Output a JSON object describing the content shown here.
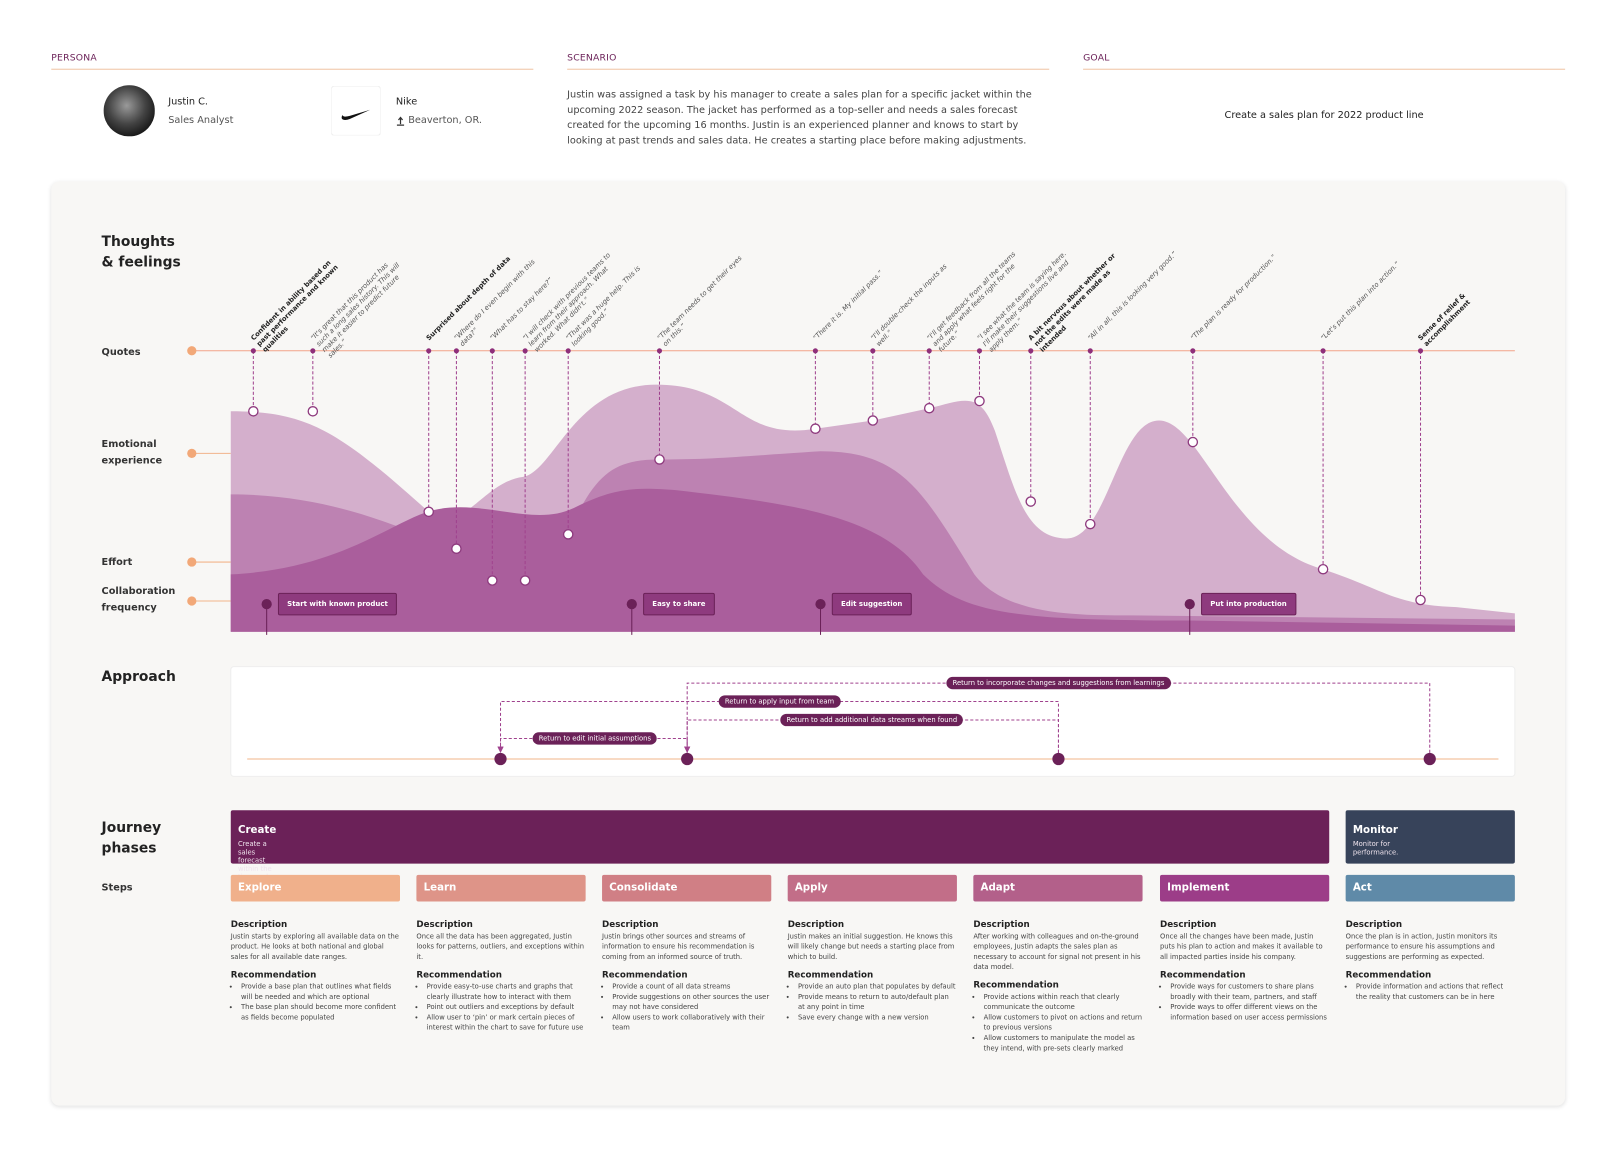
{
  "header": {
    "persona": {
      "label": "PERSONA",
      "name": "Justin C.",
      "role": "Sales Analyst",
      "company": "Nike",
      "location": "Beaverton, OR."
    },
    "scenario": {
      "label": "SCENARIO",
      "text": "Justin was assigned a task by his manager to create a sales plan for a specific jacket within the upcoming 2022 season. The jacket has performed as a top-seller and needs a sales forecast created for the upcoming 16 months. Justin is an experienced planner and knows to start by looking at past trends and sales data. He creates a starting place before making adjustments."
    },
    "goal": {
      "label": "GOAL",
      "text": "Create a sales plan for 2022 product line"
    }
  },
  "journey": {
    "thoughts_title": "Thoughts & feelings",
    "rows": [
      "Quotes",
      "Emotional experience",
      "Effort",
      "Collaboration frequency"
    ],
    "quotes": [
      {
        "text": "Confident in ability based on past performance and known qualities",
        "strong": true
      },
      {
        "text": "“It's great that this product has such a long sales history. This will make it easier to predict future sales.”",
        "strong": false
      },
      {
        "text": "Surprised about depth of data",
        "strong": true
      },
      {
        "text": "“Where do I even begin with this data?”",
        "strong": false
      },
      {
        "text": "“What has to stay here?”",
        "strong": false
      },
      {
        "text": "“I will check with previous teams to learn from their approach. What worked. What didn't.”",
        "strong": false
      },
      {
        "text": "“That was a huge help. This is looking good.”",
        "strong": false
      },
      {
        "text": "“The team needs to get their eyes on this.”",
        "strong": false
      },
      {
        "text": "“There it is. My initial pass.”",
        "strong": false
      },
      {
        "text": "“I'll double-check the inputs as well.”",
        "strong": false
      },
      {
        "text": "“I'll get feedback from all the teams and apply what feels right for the future.”",
        "strong": false
      },
      {
        "text": "“I see what the team is saying here. I'll make their suggestions live and apply them.”",
        "strong": false
      },
      {
        "text": "A bit nervous about whether or not the edits were made as intended",
        "strong": true
      },
      {
        "text": "“All in all, this is looking very good.”",
        "strong": false
      },
      {
        "text": "“The plan is ready for production.”",
        "strong": false
      },
      {
        "text": "“Let's put this plan into action.”",
        "strong": false
      },
      {
        "text": "Sense of relief & accomplishment",
        "strong": true
      }
    ],
    "collaboration": [
      "Start with known product",
      "Easy to share",
      "Edit suggestion",
      "Put into production"
    ],
    "approach": {
      "title": "Approach",
      "loops": [
        "Return to incorporate changes and suggestions from learnings",
        "Return to apply input from team",
        "Return to add additional data streams when found",
        "Return to edit initial assumptions"
      ]
    },
    "phases_title": "Journey phases",
    "phases": [
      {
        "name": "Create",
        "summary": "Create a sales forecast within the time and budget constraints."
      },
      {
        "name": "Monitor",
        "summary": "Monitor for performance."
      }
    ],
    "steps_title": "Steps",
    "description_heading": "Description",
    "recommendation_heading": "Recommendation",
    "steps": [
      {
        "name": "Explore",
        "description": "Justin starts by exploring all available data on the product. He looks at both national and global sales for all available date ranges.",
        "recommendations": [
          "Provide a base plan that outlines what fields will be needed and which are optional",
          "The base plan should become more confident as fields become populated"
        ]
      },
      {
        "name": "Learn",
        "description": "Once all the data has been aggregated, Justin looks for patterns, outliers, and exceptions within it.",
        "recommendations": [
          "Provide easy-to-use charts and graphs that clearly illustrate how to interact with them",
          "Point out outliers and exceptions by default",
          "Allow user to ‘pin’ or mark certain pieces of interest within the chart to save for future use"
        ]
      },
      {
        "name": "Consolidate",
        "description": "Justin brings other sources and streams of information to ensure his recommendation is coming from an informed source of truth.",
        "recommendations": [
          "Provide a count of all data streams",
          "Provide suggestions on other sources the user may not have considered",
          "Allow users to work collaboratively with their team"
        ]
      },
      {
        "name": "Apply",
        "description": "Justin makes an initial suggestion. He knows this will likely change but needs a starting place from which to build.",
        "recommendations": [
          "Provide an auto plan that populates by default",
          "Provide means to return to auto/default plan at any point in time",
          "Save every change with a new version"
        ]
      },
      {
        "name": "Adapt",
        "description": "After working with colleagues and on-the-ground employees, Justin adapts the sales plan as necessary to account for signal not present in his data model.",
        "recommendations": [
          "Provide actions within reach that clearly communicate the outcome",
          "Allow customers to pivot on actions and return to previous versions",
          "Allow customers to manipulate the model as they intend, with pre-sets clearly marked"
        ]
      },
      {
        "name": "Implement",
        "description": "Once all the changes have been made, Justin puts his plan to action and makes it available to all impacted parties inside his company.",
        "recommendations": [
          "Provide ways for customers to share plans broadly with their team, partners, and staff",
          "Provide ways to offer different views on the information based on user access permissions"
        ]
      },
      {
        "name": "Act",
        "description": "Once the plan is in action, Justin monitors its performance to ensure his assumptions and suggestions are performing as expected.",
        "recommendations": [
          "Provide information and actions that reflect the reality that customers can be in here"
        ]
      }
    ]
  }
}
